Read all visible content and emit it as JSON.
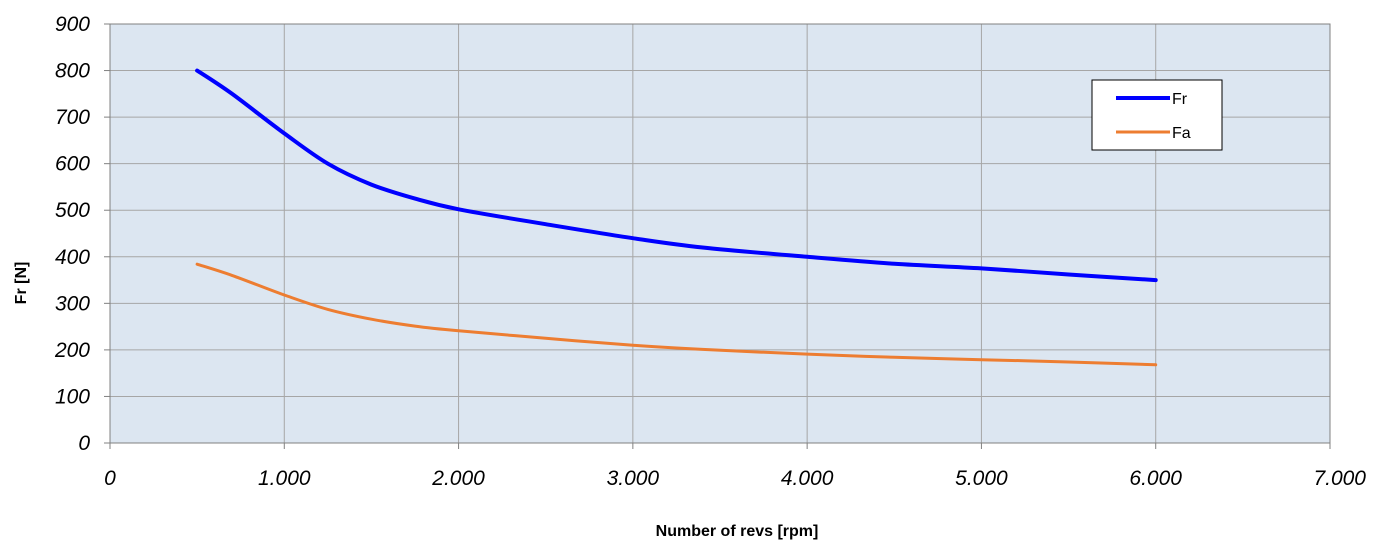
{
  "chart_data": {
    "type": "line",
    "title": "",
    "xlabel": "Number of revs [rpm]",
    "ylabel": "Fr [N]",
    "xlim": [
      0,
      7000
    ],
    "ylim": [
      0,
      900
    ],
    "x_ticks": [
      0,
      1000,
      2000,
      3000,
      4000,
      5000,
      6000,
      7000
    ],
    "x_tick_labels": [
      "0",
      "1.000",
      "2.000",
      "3.000",
      "4.000",
      "5.000",
      "6.000",
      "7.000"
    ],
    "y_ticks": [
      0,
      100,
      200,
      300,
      400,
      500,
      600,
      700,
      800,
      900
    ],
    "y_tick_labels": [
      "0",
      "100",
      "200",
      "300",
      "400",
      "500",
      "600",
      "700",
      "800",
      "900"
    ],
    "grid": true,
    "legend_position": "top-right",
    "plot_background": "#dce6f1",
    "series": [
      {
        "name": "Fr",
        "color": "#0000ff",
        "x": [
          500,
          700,
          1000,
          1250,
          1500,
          1750,
          2000,
          2500,
          3000,
          3400,
          4000,
          4500,
          5000,
          5500,
          6000
        ],
        "y": [
          800,
          750,
          665,
          600,
          555,
          525,
          502,
          470,
          440,
          420,
          400,
          385,
          375,
          362,
          350
        ]
      },
      {
        "name": "Fa",
        "color": "#ed7d31",
        "x": [
          500,
          700,
          1000,
          1250,
          1500,
          1750,
          2000,
          2500,
          3000,
          3400,
          4000,
          4500,
          5000,
          5500,
          6000
        ],
        "y": [
          384,
          360,
          318,
          287,
          266,
          251,
          241,
          225,
          210,
          201,
          191,
          184,
          179,
          174,
          168
        ]
      }
    ]
  }
}
